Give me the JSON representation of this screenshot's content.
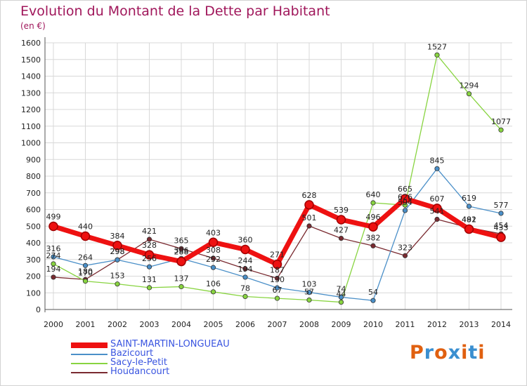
{
  "title": "Evolution du Montant de la Dette par Habitant",
  "subtitle": "(en €)",
  "brand": {
    "text": "Proxiti",
    "letter_colors": [
      "#e06010",
      "#3a8fd0",
      "#e06010",
      "#3a8fd0",
      "#e06010",
      "#3a8fd0",
      "#e06010"
    ]
  },
  "chart_data": {
    "type": "line",
    "title": "Evolution du Montant de la Dette par Habitant",
    "ylabel": "(en €)",
    "x": [
      "2000",
      "2001",
      "2002",
      "2003",
      "2004",
      "2005",
      "2006",
      "2007",
      "2008",
      "2009",
      "2010",
      "2011",
      "2012",
      "2013",
      "2014"
    ],
    "ylim": [
      0,
      1600
    ],
    "yticks": [
      0,
      100,
      200,
      300,
      400,
      500,
      600,
      700,
      800,
      900,
      1000,
      1100,
      1200,
      1300,
      1400,
      1500,
      1600
    ],
    "grid": true,
    "legend_position": "bottom-left",
    "series": [
      {
        "name": "SAINT-MARTIN-LONGUEAU",
        "color": "#ee1111",
        "values": [
          499,
          440,
          384,
          328,
          288,
          403,
          360,
          271,
          628,
          539,
          496,
          665,
          607,
          482,
          433
        ]
      },
      {
        "name": "Bazicourt",
        "color": "#4a8fc8",
        "values": [
          316,
          264,
          298,
          256,
          306,
          252,
          194,
          130,
          103,
          74,
          54,
          594,
          845,
          619,
          577
        ]
      },
      {
        "name": "Sacy-le-Petit",
        "color": "#88d440",
        "values": [
          274,
          170,
          153,
          131,
          137,
          106,
          78,
          67,
          57,
          44,
          640,
          626,
          1527,
          1294,
          1077
        ]
      },
      {
        "name": "Houdancourt",
        "color": "#7a2a30",
        "values": [
          194,
          180,
          298,
          421,
          365,
          308,
          244,
          187,
          501,
          427,
          382,
          323,
          541,
          491,
          454
        ]
      }
    ]
  }
}
